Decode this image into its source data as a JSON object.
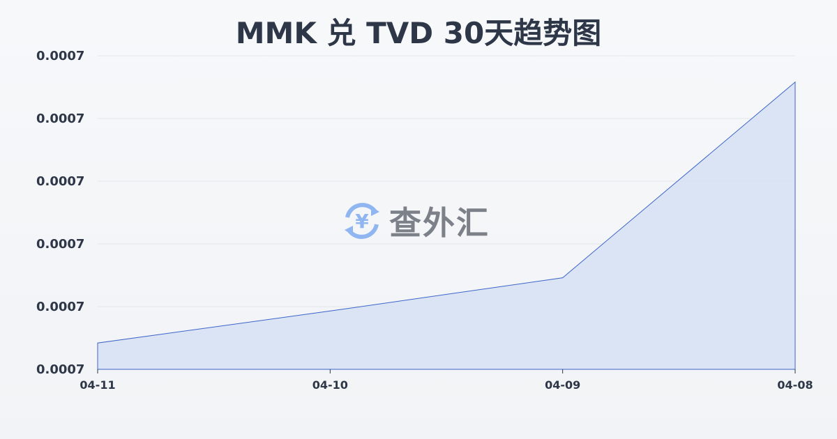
{
  "title": "MMK 兑 TVD 30天趋势图",
  "watermark": {
    "text": "查外汇",
    "icon": "yen-exchange-icon",
    "icon_color": "#8fb6f0",
    "text_color": "#7c8088"
  },
  "chart_data": {
    "type": "area",
    "title": "MMK 兑 TVD 30天趋势图",
    "categories": [
      "04-11",
      "04-10",
      "04-09",
      "04-08"
    ],
    "series": [
      {
        "values": [
          0.0007042,
          0.0007093,
          0.0007146,
          0.0007458
        ]
      }
    ],
    "ylim": [
      0.0007,
      0.00075
    ],
    "yticks": [
      0.0007,
      0.00071,
      0.00072,
      0.00073,
      0.00074,
      0.00075
    ],
    "ytick_labels": [
      "0.0007",
      "0.0007",
      "0.0007",
      "0.0007",
      "0.0007",
      "0.0007"
    ],
    "xlabel": "",
    "ylabel": "",
    "grid": true,
    "line_color": "#3b63c9",
    "fill_color": "#d6e0f5"
  }
}
